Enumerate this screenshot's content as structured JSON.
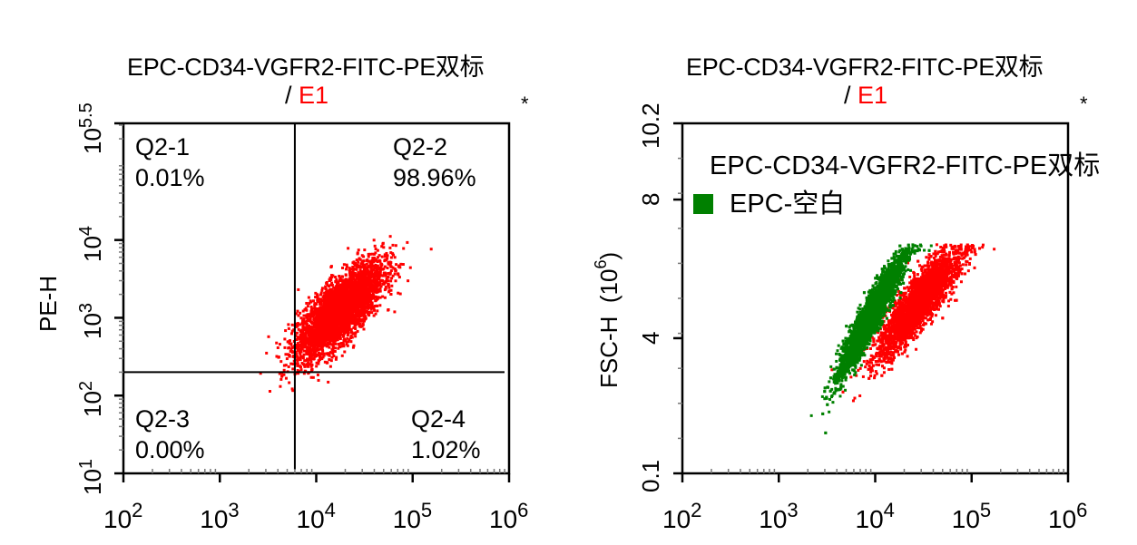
{
  "chart_data": [
    {
      "type": "scatter",
      "panel": "left",
      "title_line1": "EPC-CD34-VGFR2-FITC-PE双标",
      "title_sep": "/",
      "title_gate": "E1",
      "title_gate_color": "#ff0000",
      "corner_mark": "*",
      "xlabel": "",
      "ylabel": "PE-H",
      "xscale": "log",
      "yscale": "log",
      "xlim": [
        100,
        1000000
      ],
      "ylim": [
        10,
        316228
      ],
      "x_ticks": [
        {
          "base": "10",
          "exp": "2",
          "value": 100
        },
        {
          "base": "10",
          "exp": "3",
          "value": 1000
        },
        {
          "base": "10",
          "exp": "4",
          "value": 10000
        },
        {
          "base": "10",
          "exp": "5",
          "value": 100000
        },
        {
          "base": "10",
          "exp": "6",
          "value": 1000000
        }
      ],
      "y_ticks": [
        {
          "base": "10",
          "exp": "1",
          "value": 10
        },
        {
          "base": "10",
          "exp": "2",
          "value": 100
        },
        {
          "base": "10",
          "exp": "3",
          "value": 1000
        },
        {
          "base": "10",
          "exp": "4",
          "value": 10000
        },
        {
          "base": "10",
          "exp": "5.5",
          "value": 316228
        }
      ],
      "gate": {
        "x": 6000,
        "y": 200
      },
      "quadrants": [
        {
          "id": "Q2-1",
          "label": "Q2-1",
          "percent": "0.01%",
          "position": "top-left"
        },
        {
          "id": "Q2-2",
          "label": "Q2-2",
          "percent": "98.96%",
          "position": "top-right"
        },
        {
          "id": "Q2-3",
          "label": "Q2-3",
          "percent": "0.00%",
          "position": "bottom-left"
        },
        {
          "id": "Q2-4",
          "label": "Q2-4",
          "percent": "1.02%",
          "position": "bottom-right"
        }
      ],
      "series": [
        {
          "name": "EPC-CD34-VGFR2-FITC-PE",
          "color": "#ff0000",
          "cluster": {
            "center_log_x": 4.25,
            "center_log_y": 3.1,
            "spread_log_x": 0.22,
            "spread_log_y": 0.3,
            "correlation": 0.75,
            "n": 4000
          }
        }
      ],
      "grid": false
    },
    {
      "type": "scatter",
      "panel": "right",
      "title_line1": "EPC-CD34-VGFR2-FITC-PE双标",
      "title_sep": "/",
      "title_gate": "E1",
      "title_gate_color": "#ff0000",
      "corner_mark": "*",
      "xlabel": "",
      "ylabel": "FSC-H",
      "ylabel_unit_base": "(10",
      "ylabel_unit_exp": "6",
      "ylabel_unit_close": ")",
      "xscale": "log",
      "yscale": "linear",
      "xlim": [
        100,
        1000000
      ],
      "ylim": [
        0.1,
        10.2
      ],
      "x_ticks": [
        {
          "base": "10",
          "exp": "2",
          "value": 100
        },
        {
          "base": "10",
          "exp": "3",
          "value": 1000
        },
        {
          "base": "10",
          "exp": "4",
          "value": 10000
        },
        {
          "base": "10",
          "exp": "5",
          "value": 100000
        },
        {
          "base": "10",
          "exp": "6",
          "value": 1000000
        }
      ],
      "y_ticks": [
        {
          "label": "0.1",
          "value": 0.1
        },
        {
          "label": "4",
          "value": 4
        },
        {
          "label": "8",
          "value": 8
        },
        {
          "label": "10.2",
          "value": 10.2
        }
      ],
      "legend": {
        "placement": "top-left",
        "entries": [
          {
            "label": "EPC-CD34-VGFR2-FITC-PE双标",
            "color": "#ff0000"
          },
          {
            "label": "EPC-空白",
            "color": "#008000"
          }
        ]
      },
      "series": [
        {
          "name": "EPC-CD34-VGFR2-FITC-PE双标",
          "color": "#ff0000",
          "cluster": {
            "center_log_x": 4.45,
            "center_y": 5.0,
            "spread_log_x": 0.2,
            "spread_y": 1.1,
            "n": 3500
          }
        },
        {
          "name": "EPC-空白",
          "color": "#008000",
          "cluster": {
            "center_log_x": 3.95,
            "center_y": 4.6,
            "spread_log_x": 0.14,
            "spread_y": 1.15,
            "n": 4500
          }
        }
      ],
      "grid": false
    }
  ]
}
